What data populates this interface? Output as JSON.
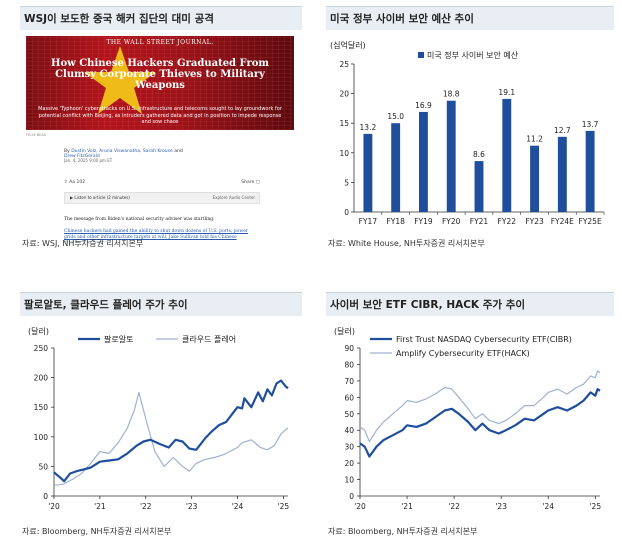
{
  "panels": {
    "p1": {
      "title": "WSJ이 보도한 중국 해커 집단의 대미 공격",
      "source": "자료: WSJ, NH투자증권 리서치본부",
      "article": {
        "masthead": "THE WALL STREET JOURNAL.",
        "headline": "How Chinese Hackers Graduated From Clumsy Corporate Thieves to Military Weapons",
        "deck": "Massive 'Typhoon' cyberattacks on U.S. infrastructure and telecoms sought to lay groundwork for potential conflict with Beijing, as intruders gathered data and got in position to impede response and sow chaos",
        "photo_credit": "FELIX BEAU",
        "byline_prefix": "By",
        "authors": [
          "Dustin Volz",
          "Aruna Viswanatha",
          "Sarah Krouse",
          "Drew FitzGerald"
        ],
        "byline_and": "and",
        "date": "Jan. 4, 2025 9:00 pm ET",
        "share_label": "Share",
        "resize_label": "Resize",
        "count_label": "102",
        "listen_label": "Listen to article",
        "listen_duration": "(2 minutes)",
        "listen_right": "Explore Audio Center",
        "body1": "The message from Biden's national security adviser was startling.",
        "body2": "Chinese hackers had gained the ability to shut down dozens of U.S. ports, power grids and other infrastructure targets at will, Jake Sullivan told his Chinese counterpart during"
      }
    },
    "p2": {
      "title": "미국 정부 사이버 보안 예산 추이",
      "source": "자료: White House, NH투자증권 리서치본부"
    },
    "p3": {
      "title": "팔로알토, 클라우드 플레어 주가 추이",
      "source": "자료: Bloomberg, NH투자증권 리서치본부"
    },
    "p4": {
      "title": "사이버 보안 ETF CIBR, HACK 주가 추이",
      "source": "자료: Bloomberg, NH투자증권 리서치본부"
    }
  },
  "chart_data": [
    {
      "type": "bar",
      "unit_label": "(십억달러)",
      "legend": [
        "미국 정부 사이버 보안 예산"
      ],
      "categories": [
        "FY17",
        "FY18",
        "FY19",
        "FY20",
        "FY21",
        "FY22",
        "FY23",
        "FY24E",
        "FY25E"
      ],
      "values": [
        13.2,
        15.0,
        16.9,
        18.8,
        8.6,
        19.1,
        11.2,
        12.7,
        13.7
      ],
      "value_labels": [
        "13.2",
        "15.0",
        "16.9",
        "18.8",
        "8.6",
        "19.1",
        "11.2",
        "12.7",
        "13.7"
      ],
      "ylim": [
        0,
        25
      ],
      "yticks": [
        0,
        5,
        10,
        15,
        20,
        25
      ],
      "color": "#1f4e9c",
      "legend_position": "top"
    },
    {
      "type": "line",
      "unit_label": "(달러)",
      "ylim": [
        0,
        250
      ],
      "yticks": [
        0,
        50,
        100,
        150,
        200,
        250
      ],
      "xlim": [
        2020.0,
        2025.1
      ],
      "xticks": [
        2020,
        2021,
        2022,
        2023,
        2024,
        2025
      ],
      "xtick_labels": [
        "'20",
        "'21",
        "'22",
        "'23",
        "'24",
        "'25"
      ],
      "legend_position": "top",
      "series": [
        {
          "name": "팔로알토",
          "color": "#1f4e9c",
          "width": 2.2,
          "points": [
            [
              2020.0,
              40
            ],
            [
              2020.15,
              30
            ],
            [
              2020.22,
              25
            ],
            [
              2020.35,
              38
            ],
            [
              2020.5,
              42
            ],
            [
              2020.65,
              45
            ],
            [
              2020.8,
              48
            ],
            [
              2021.0,
              58
            ],
            [
              2021.2,
              60
            ],
            [
              2021.4,
              62
            ],
            [
              2021.6,
              72
            ],
            [
              2021.8,
              85
            ],
            [
              2021.95,
              92
            ],
            [
              2022.1,
              95
            ],
            [
              2022.3,
              88
            ],
            [
              2022.5,
              82
            ],
            [
              2022.65,
              95
            ],
            [
              2022.8,
              92
            ],
            [
              2022.95,
              80
            ],
            [
              2023.1,
              78
            ],
            [
              2023.3,
              98
            ],
            [
              2023.45,
              110
            ],
            [
              2023.6,
              120
            ],
            [
              2023.75,
              125
            ],
            [
              2023.9,
              140
            ],
            [
              2024.0,
              150
            ],
            [
              2024.1,
              148
            ],
            [
              2024.15,
              165
            ],
            [
              2024.3,
              150
            ],
            [
              2024.45,
              175
            ],
            [
              2024.55,
              160
            ],
            [
              2024.65,
              180
            ],
            [
              2024.75,
              170
            ],
            [
              2024.85,
              190
            ],
            [
              2024.95,
              195
            ],
            [
              2025.05,
              185
            ],
            [
              2025.1,
              182
            ]
          ]
        },
        {
          "name": "클라우드 플레어",
          "color": "#9fb2d1",
          "width": 1.2,
          "points": [
            [
              2020.0,
              18
            ],
            [
              2020.2,
              20
            ],
            [
              2020.4,
              28
            ],
            [
              2020.6,
              38
            ],
            [
              2020.8,
              55
            ],
            [
              2021.0,
              75
            ],
            [
              2021.2,
              72
            ],
            [
              2021.4,
              90
            ],
            [
              2021.6,
              115
            ],
            [
              2021.75,
              145
            ],
            [
              2021.85,
              175
            ],
            [
              2022.0,
              130
            ],
            [
              2022.2,
              75
            ],
            [
              2022.4,
              50
            ],
            [
              2022.6,
              65
            ],
            [
              2022.8,
              50
            ],
            [
              2022.95,
              42
            ],
            [
              2023.1,
              55
            ],
            [
              2023.3,
              62
            ],
            [
              2023.5,
              65
            ],
            [
              2023.7,
              70
            ],
            [
              2023.9,
              78
            ],
            [
              2024.0,
              82
            ],
            [
              2024.1,
              90
            ],
            [
              2024.3,
              95
            ],
            [
              2024.5,
              82
            ],
            [
              2024.65,
              78
            ],
            [
              2024.8,
              85
            ],
            [
              2024.95,
              105
            ],
            [
              2025.05,
              112
            ],
            [
              2025.1,
              115
            ]
          ]
        }
      ]
    },
    {
      "type": "line",
      "unit_label": "(달러)",
      "ylim": [
        0,
        90
      ],
      "yticks": [
        0,
        10,
        20,
        30,
        40,
        50,
        60,
        70,
        80,
        90
      ],
      "xlim": [
        2020.0,
        2025.1
      ],
      "xticks": [
        2020,
        2021,
        2022,
        2023,
        2024,
        2025
      ],
      "xtick_labels": [
        "'20",
        "'21",
        "'22",
        "'23",
        "'24",
        "'25"
      ],
      "legend_position": "top",
      "series": [
        {
          "name": "First Trust NASDAQ Cybersecurity ETF(CIBR)",
          "color": "#1f4e9c",
          "width": 2.2,
          "points": [
            [
              2020.0,
              32
            ],
            [
              2020.1,
              30
            ],
            [
              2020.2,
              24
            ],
            [
              2020.35,
              30
            ],
            [
              2020.5,
              34
            ],
            [
              2020.7,
              37
            ],
            [
              2020.9,
              40
            ],
            [
              2021.0,
              43
            ],
            [
              2021.2,
              42
            ],
            [
              2021.4,
              44
            ],
            [
              2021.6,
              48
            ],
            [
              2021.8,
              52
            ],
            [
              2021.95,
              53
            ],
            [
              2022.1,
              50
            ],
            [
              2022.3,
              45
            ],
            [
              2022.45,
              40
            ],
            [
              2022.6,
              44
            ],
            [
              2022.75,
              40
            ],
            [
              2022.95,
              38
            ],
            [
              2023.1,
              40
            ],
            [
              2023.3,
              43
            ],
            [
              2023.5,
              47
            ],
            [
              2023.7,
              46
            ],
            [
              2023.9,
              50
            ],
            [
              2024.0,
              52
            ],
            [
              2024.2,
              54
            ],
            [
              2024.4,
              52
            ],
            [
              2024.6,
              55
            ],
            [
              2024.75,
              58
            ],
            [
              2024.9,
              63
            ],
            [
              2025.0,
              61
            ],
            [
              2025.05,
              65
            ],
            [
              2025.1,
              64
            ]
          ]
        },
        {
          "name": "Amplify Cybersecurity ETF(HACK)",
          "color": "#9fb2d1",
          "width": 1.2,
          "points": [
            [
              2020.0,
              42
            ],
            [
              2020.1,
              40
            ],
            [
              2020.2,
              33
            ],
            [
              2020.35,
              40
            ],
            [
              2020.5,
              45
            ],
            [
              2020.7,
              50
            ],
            [
              2020.9,
              55
            ],
            [
              2021.0,
              58
            ],
            [
              2021.2,
              57
            ],
            [
              2021.4,
              59
            ],
            [
              2021.6,
              62
            ],
            [
              2021.8,
              66
            ],
            [
              2021.95,
              65
            ],
            [
              2022.1,
              60
            ],
            [
              2022.3,
              53
            ],
            [
              2022.45,
              47
            ],
            [
              2022.6,
              50
            ],
            [
              2022.75,
              46
            ],
            [
              2022.95,
              44
            ],
            [
              2023.1,
              46
            ],
            [
              2023.3,
              50
            ],
            [
              2023.5,
              55
            ],
            [
              2023.7,
              55
            ],
            [
              2023.9,
              60
            ],
            [
              2024.0,
              63
            ],
            [
              2024.2,
              65
            ],
            [
              2024.4,
              62
            ],
            [
              2024.6,
              66
            ],
            [
              2024.75,
              68
            ],
            [
              2024.9,
              73
            ],
            [
              2025.0,
              72
            ],
            [
              2025.05,
              76
            ],
            [
              2025.1,
              75
            ]
          ]
        }
      ]
    }
  ]
}
